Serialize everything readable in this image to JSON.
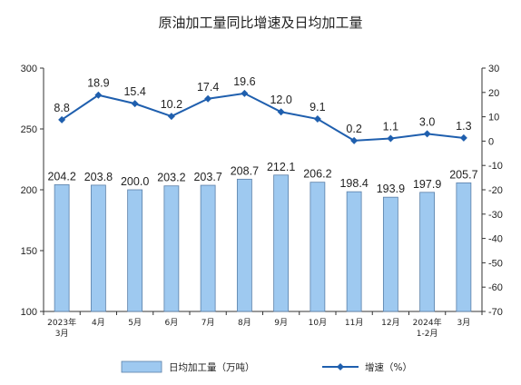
{
  "chart_data": {
    "type": "bar",
    "title": "原油加工量同比增速及日均加工量",
    "categories": [
      [
        "2023年",
        "3月"
      ],
      [
        "4月"
      ],
      [
        "5月"
      ],
      [
        "6月"
      ],
      [
        "7月"
      ],
      [
        "8月"
      ],
      [
        "9月"
      ],
      [
        "10月"
      ],
      [
        "11月"
      ],
      [
        "12月"
      ],
      [
        "2024年",
        "1-2月"
      ],
      [
        "3月"
      ]
    ],
    "series": [
      {
        "name": "日均加工量（万吨）",
        "type": "bar",
        "axis": "left",
        "color": "#9ec9f0",
        "values": [
          204.2,
          203.8,
          200.0,
          203.2,
          203.7,
          208.7,
          212.1,
          206.2,
          198.4,
          193.9,
          197.9,
          205.7
        ],
        "labels": [
          "204.2",
          "203.8",
          "200.0",
          "203.2",
          "203.7",
          "208.7",
          "212.1",
          "206.2",
          "198.4",
          "193.9",
          "197.9",
          "205.7"
        ]
      },
      {
        "name": "增速（%）",
        "type": "line",
        "axis": "right",
        "color": "#1f5fae",
        "values": [
          8.8,
          18.9,
          15.4,
          10.2,
          17.4,
          19.6,
          12.0,
          9.1,
          0.2,
          1.1,
          3.0,
          1.3
        ],
        "labels": [
          "8.8",
          "18.9",
          "15.4",
          "10.2",
          "17.4",
          "19.6",
          "12.0",
          "9.1",
          "0.2",
          "1.1",
          "3.0",
          "1.3"
        ]
      }
    ],
    "y_left": {
      "min": 100,
      "max": 300,
      "ticks": [
        "100",
        "150",
        "200",
        "250",
        "300"
      ]
    },
    "y_right": {
      "min": -70,
      "max": 30,
      "ticks": [
        "-70",
        "-60",
        "-50",
        "-40",
        "-30",
        "-20",
        "-10",
        "0",
        "10",
        "20",
        "30"
      ]
    },
    "grid": false,
    "legend_position": "bottom"
  }
}
